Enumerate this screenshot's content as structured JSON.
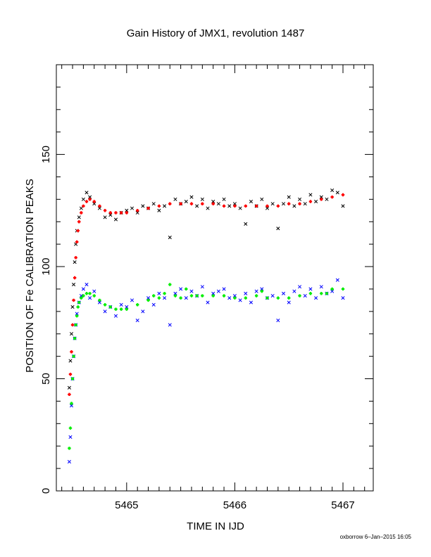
{
  "chart_data": {
    "type": "scatter",
    "title": "Gain History of JMX1, revolution 1487",
    "xlabel": "TIME IN IJD",
    "ylabel": "POSITION OF Fe CALIBRATION PEAKS",
    "xlim": [
      5464.35,
      5467.28
    ],
    "ylim": [
      0,
      190
    ],
    "x_ticks": [
      5465,
      5466,
      5467
    ],
    "x_tick_labels": [
      "5465",
      "5466",
      "5467"
    ],
    "y_ticks": [
      0,
      50,
      100,
      150
    ],
    "y_tick_labels": [
      "0",
      "50",
      "100",
      "150"
    ],
    "grid": false,
    "legend": "none",
    "series": [
      {
        "marker": "cross",
        "color": "#000000",
        "x": [
          5464.47,
          5464.48,
          5464.49,
          5464.5,
          5464.51,
          5464.52,
          5464.53,
          5464.54,
          5464.56,
          5464.58,
          5464.6,
          5464.63,
          5464.66,
          5464.7,
          5464.75,
          5464.8,
          5464.85,
          5464.9,
          5464.95,
          5465.0,
          5465.05,
          5465.1,
          5465.15,
          5465.2,
          5465.25,
          5465.3,
          5465.35,
          5465.4,
          5465.45,
          5465.5,
          5465.55,
          5465.6,
          5465.65,
          5465.7,
          5465.75,
          5465.8,
          5465.85,
          5465.9,
          5465.95,
          5466.0,
          5466.05,
          5466.1,
          5466.15,
          5466.2,
          5466.25,
          5466.3,
          5466.35,
          5466.4,
          5466.45,
          5466.5,
          5466.55,
          5466.6,
          5466.65,
          5466.7,
          5466.75,
          5466.8,
          5466.85,
          5466.9,
          5466.95,
          5467.0
        ],
        "y": [
          46,
          58,
          70,
          82,
          92,
          102,
          110,
          116,
          122,
          126,
          130,
          133,
          131,
          128,
          126,
          122,
          123,
          121,
          124,
          125,
          126,
          124,
          127,
          126,
          128,
          125,
          127,
          113,
          130,
          128,
          129,
          131,
          127,
          130,
          126,
          129,
          128,
          130,
          127,
          128,
          126,
          119,
          129,
          127,
          130,
          126,
          128,
          117,
          128,
          131,
          127,
          130,
          128,
          132,
          129,
          131,
          130,
          134,
          133,
          127
        ]
      },
      {
        "marker": "plus",
        "color": "#ff0000",
        "x": [
          5464.47,
          5464.48,
          5464.49,
          5464.5,
          5464.51,
          5464.52,
          5464.53,
          5464.54,
          5464.55,
          5464.56,
          5464.58,
          5464.6,
          5464.63,
          5464.66,
          5464.7,
          5464.75,
          5464.8,
          5464.85,
          5464.9,
          5464.95,
          5465.0,
          5465.1,
          5465.2,
          5465.3,
          5465.4,
          5465.5,
          5465.6,
          5465.7,
          5465.8,
          5465.9,
          5466.0,
          5466.1,
          5466.2,
          5466.3,
          5466.4,
          5466.5,
          5466.6,
          5466.7,
          5466.8,
          5466.9,
          5467.0
        ],
        "y": [
          43,
          52,
          62,
          74,
          85,
          95,
          104,
          111,
          116,
          120,
          124,
          127,
          129,
          130,
          129,
          127,
          125,
          124,
          124,
          124,
          124,
          125,
          126,
          127,
          128,
          128,
          128,
          128,
          128,
          127,
          127,
          127,
          127,
          127,
          127,
          128,
          128,
          129,
          130,
          131,
          132
        ]
      },
      {
        "marker": "cross",
        "color": "#0000ff",
        "x": [
          5464.47,
          5464.48,
          5464.49,
          5464.5,
          5464.51,
          5464.52,
          5464.53,
          5464.54,
          5464.56,
          5464.58,
          5464.6,
          5464.63,
          5464.66,
          5464.7,
          5464.75,
          5464.8,
          5464.85,
          5464.9,
          5464.95,
          5465.0,
          5465.05,
          5465.1,
          5465.15,
          5465.2,
          5465.25,
          5465.3,
          5465.35,
          5465.4,
          5465.45,
          5465.5,
          5465.55,
          5465.6,
          5465.65,
          5465.7,
          5465.75,
          5465.8,
          5465.85,
          5465.9,
          5465.95,
          5466.0,
          5466.05,
          5466.1,
          5466.15,
          5466.2,
          5466.25,
          5466.3,
          5466.35,
          5466.4,
          5466.45,
          5466.5,
          5466.55,
          5466.6,
          5466.65,
          5466.7,
          5466.75,
          5466.8,
          5466.85,
          5466.9,
          5466.95,
          5467.0
        ],
        "y": [
          13,
          24,
          38,
          50,
          60,
          68,
          74,
          79,
          84,
          87,
          90,
          92,
          86,
          89,
          84,
          80,
          82,
          78,
          83,
          82,
          85,
          76,
          80,
          86,
          83,
          88,
          86,
          74,
          88,
          90,
          86,
          89,
          87,
          91,
          84,
          88,
          89,
          90,
          86,
          87,
          85,
          88,
          84,
          89,
          90,
          86,
          87,
          76,
          88,
          84,
          89,
          91,
          87,
          90,
          86,
          91,
          88,
          89,
          94,
          86
        ]
      },
      {
        "marker": "plus",
        "color": "#00ee00",
        "x": [
          5464.47,
          5464.48,
          5464.49,
          5464.5,
          5464.51,
          5464.52,
          5464.53,
          5464.54,
          5464.55,
          5464.56,
          5464.58,
          5464.6,
          5464.63,
          5464.66,
          5464.7,
          5464.75,
          5464.8,
          5464.85,
          5464.9,
          5464.95,
          5465.0,
          5465.1,
          5465.2,
          5465.25,
          5465.3,
          5465.35,
          5465.4,
          5465.45,
          5465.5,
          5465.55,
          5465.6,
          5465.65,
          5465.7,
          5465.8,
          5465.9,
          5466.0,
          5466.1,
          5466.2,
          5466.25,
          5466.3,
          5466.4,
          5466.5,
          5466.6,
          5466.7,
          5466.8,
          5466.85,
          5466.9,
          5467.0
        ],
        "y": [
          19,
          28,
          39,
          50,
          60,
          68,
          74,
          78,
          82,
          84,
          86,
          87,
          88,
          88,
          87,
          85,
          83,
          82,
          81,
          81,
          81,
          83,
          85,
          87,
          86,
          88,
          92,
          87,
          86,
          90,
          87,
          87,
          87,
          87,
          87,
          86,
          86,
          87,
          89,
          86,
          86,
          86,
          87,
          88,
          88,
          88,
          90,
          90
        ]
      }
    ]
  },
  "footer_text": "oxborrow  6–Jan–2015 16:05"
}
